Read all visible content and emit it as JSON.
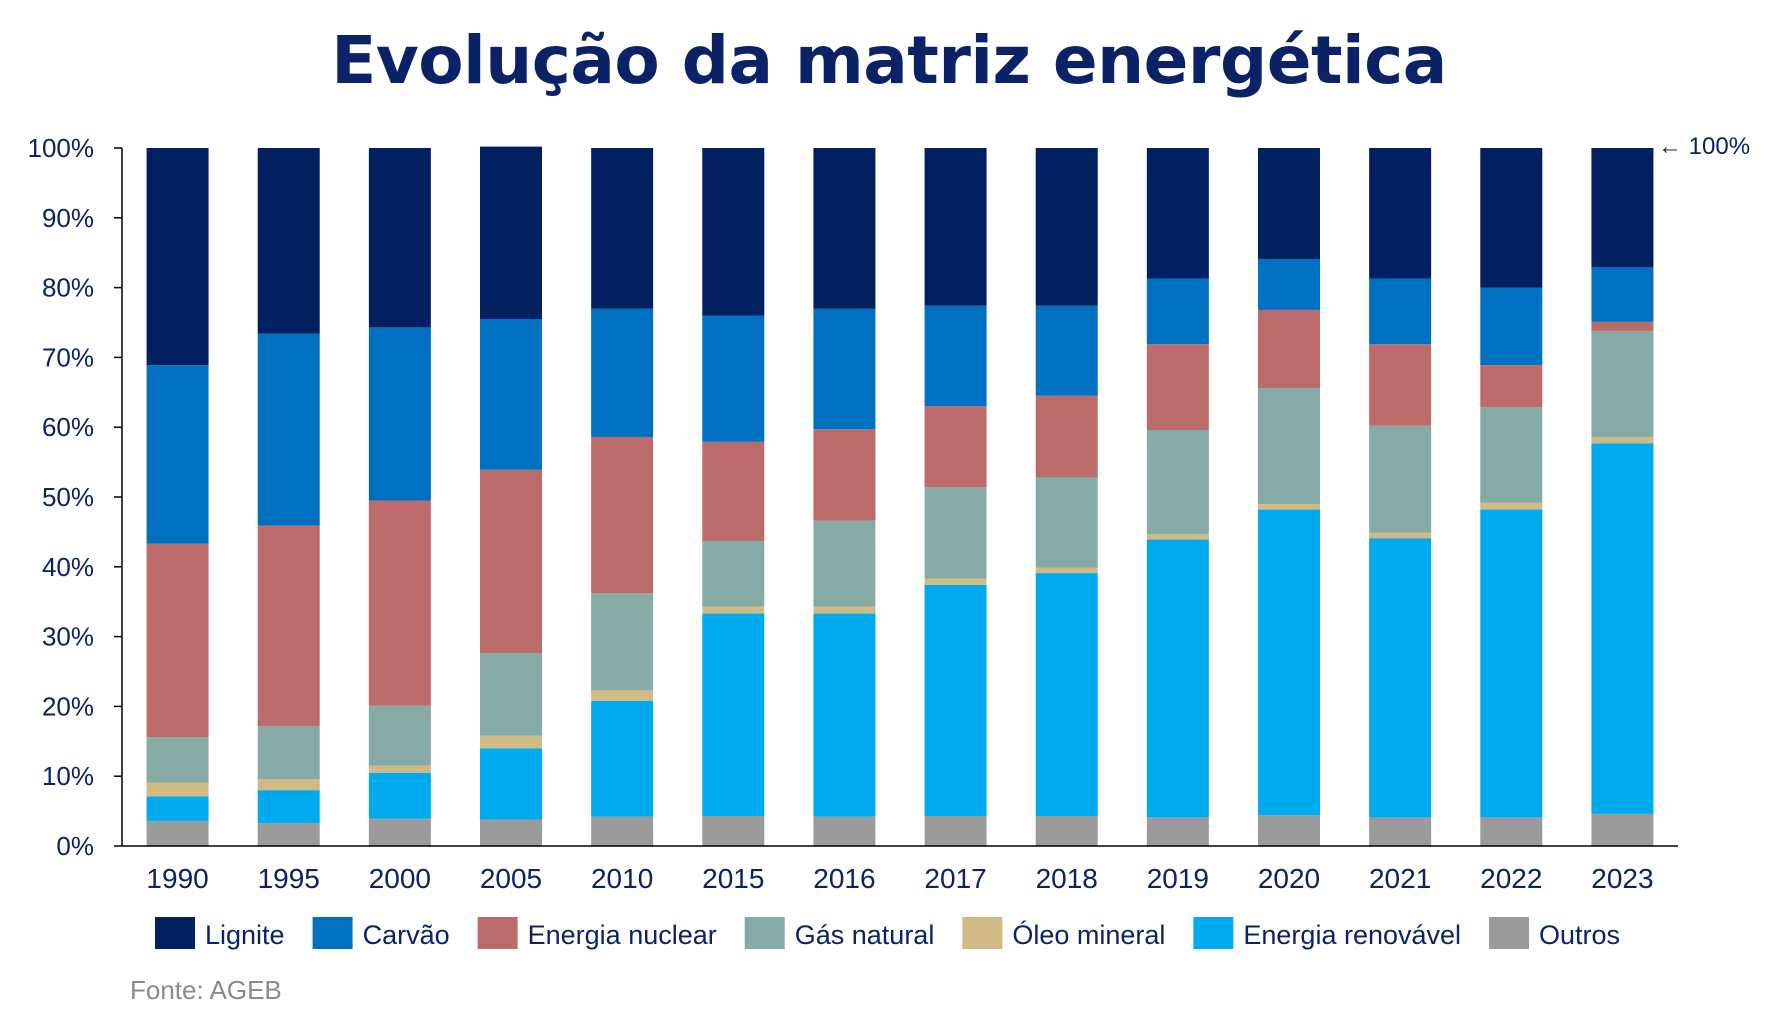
{
  "title": "Evolução da matriz energética",
  "source": "Fonte: AGEB",
  "annotation": "← 100%",
  "chart_data": {
    "type": "bar",
    "stacked": true,
    "title": "Evolução da matriz energética",
    "xlabel": "",
    "ylabel": "",
    "ylim": [
      0,
      100
    ],
    "y_ticks": [
      "0%",
      "10%",
      "20%",
      "30%",
      "40%",
      "50%",
      "60%",
      "70%",
      "80%",
      "90%",
      "100%"
    ],
    "categories": [
      "1990",
      "1995",
      "2000",
      "2005",
      "2010",
      "2015",
      "2016",
      "2017",
      "2018",
      "2019",
      "2020",
      "2021",
      "2022",
      "2023"
    ],
    "legend_position": "bottom",
    "grid": false,
    "series": [
      {
        "name": "Outros",
        "color": "#9b9b9b",
        "values": [
          3.6,
          3.3,
          3.9,
          3.8,
          4.2,
          4.3,
          4.2,
          4.3,
          4.3,
          4.1,
          4.4,
          4.1,
          4.1,
          4.6
        ]
      },
      {
        "name": "Energia renovável",
        "color": "#00aaee",
        "values": [
          3.5,
          4.7,
          6.6,
          10.2,
          16.6,
          29.0,
          29.1,
          33.1,
          34.8,
          39.8,
          43.8,
          40.0,
          44.1,
          53.1
        ]
      },
      {
        "name": "Óleo mineral",
        "color": "#cfbb83",
        "values": [
          2.0,
          1.6,
          1.0,
          1.8,
          1.5,
          1.0,
          1.0,
          0.9,
          0.8,
          0.8,
          0.8,
          0.8,
          1.0,
          0.9
        ]
      },
      {
        "name": "Gás natural",
        "color": "#86aba6",
        "values": [
          6.5,
          7.6,
          8.6,
          11.8,
          13.9,
          9.4,
          12.3,
          13.1,
          12.9,
          14.9,
          16.6,
          15.3,
          13.7,
          15.2
        ]
      },
      {
        "name": "Energia nuclear",
        "color": "#bc6b6b",
        "values": [
          27.7,
          28.7,
          29.4,
          26.3,
          22.4,
          14.2,
          13.1,
          11.6,
          11.7,
          12.3,
          11.2,
          11.7,
          6.0,
          1.3
        ]
      },
      {
        "name": "Carvão",
        "color": "#0071c1",
        "values": [
          25.6,
          27.5,
          24.8,
          21.6,
          18.4,
          18.1,
          17.3,
          14.4,
          12.9,
          9.4,
          7.3,
          9.4,
          11.1,
          7.8
        ]
      },
      {
        "name": "Lignite",
        "color": "#02205f",
        "values": [
          31.1,
          26.6,
          25.7,
          24.7,
          23.0,
          24.0,
          23.0,
          22.6,
          22.6,
          18.7,
          15.9,
          18.7,
          20.0,
          17.1
        ]
      }
    ],
    "legend_order": [
      "Lignite",
      "Carvão",
      "Energia nuclear",
      "Gás natural",
      "Óleo mineral",
      "Energia renovável",
      "Outros"
    ]
  }
}
